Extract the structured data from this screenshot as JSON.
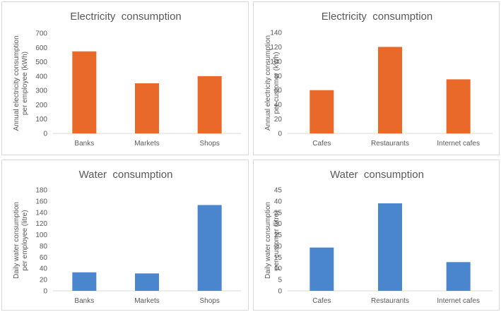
{
  "chart_data": [
    {
      "type": "bar",
      "title": "Electricity  consumption",
      "ylabel": "Annual electricity consumption per employee (kWh)",
      "ylabel_lines": [
        "Annual electricity consumption",
        "per employee (kWh)"
      ],
      "categories": [
        "Banks",
        "Markets",
        "Shops"
      ],
      "values": [
        573,
        350,
        400
      ],
      "ylim": [
        0,
        700
      ],
      "yticks": [
        "0",
        "100",
        "200",
        "300",
        "400",
        "500",
        "600",
        "700"
      ],
      "ytick_values": [
        0,
        100,
        200,
        300,
        400,
        500,
        600,
        700
      ],
      "color": "#e8692a",
      "grid": false,
      "legend": "none"
    },
    {
      "type": "bar",
      "title": "Electricity  consumption",
      "ylabel": "Annual electricity consumption per customer (kWh)",
      "ylabel_lines": [
        "Annual electricity consumption",
        "per customer (kWh)"
      ],
      "categories": [
        "Cafes",
        "Restaurants",
        "Internet cafes"
      ],
      "values": [
        60,
        120,
        75
      ],
      "ylim": [
        0,
        140
      ],
      "yticks": [
        "0",
        "20",
        "40",
        "60",
        "80",
        "100",
        "120",
        "140"
      ],
      "ytick_values": [
        0,
        20,
        40,
        60,
        80,
        100,
        120,
        140
      ],
      "color": "#e8692a",
      "grid": false,
      "legend": "none"
    },
    {
      "type": "bar",
      "title": "Water  consumption",
      "ylabel": "Daily water consumption per employee (litre)",
      "ylabel_lines": [
        "Daily water consumption",
        "per employee (litre)"
      ],
      "categories": [
        "Banks",
        "Markets",
        "Shops"
      ],
      "values": [
        33,
        31,
        153
      ],
      "ylim": [
        0,
        180
      ],
      "yticks": [
        "0",
        "20",
        "40",
        "60",
        "80",
        "100",
        "120",
        "140",
        "160",
        "180"
      ],
      "ytick_values": [
        0,
        20,
        40,
        60,
        80,
        100,
        120,
        140,
        160,
        180
      ],
      "color": "#4a86cd",
      "grid": false,
      "legend": "none"
    },
    {
      "type": "bar",
      "title": "Water  consumption",
      "ylabel": "Daily water consumption per customer (litre)",
      "ylabel_lines": [
        "Daily water consumption",
        "per customer (litre)"
      ],
      "categories": [
        "Cafes",
        "Restaurants",
        "Internet cafes"
      ],
      "values": [
        19.3,
        39,
        12.8
      ],
      "ylim": [
        0,
        45
      ],
      "yticks": [
        "0",
        "5",
        "10",
        "15",
        "20",
        "25",
        "30",
        "35",
        "40",
        "45"
      ],
      "ytick_values": [
        0,
        5,
        10,
        15,
        20,
        25,
        30,
        35,
        40,
        45
      ],
      "color": "#4a86cd",
      "grid": false,
      "legend": "none"
    }
  ]
}
